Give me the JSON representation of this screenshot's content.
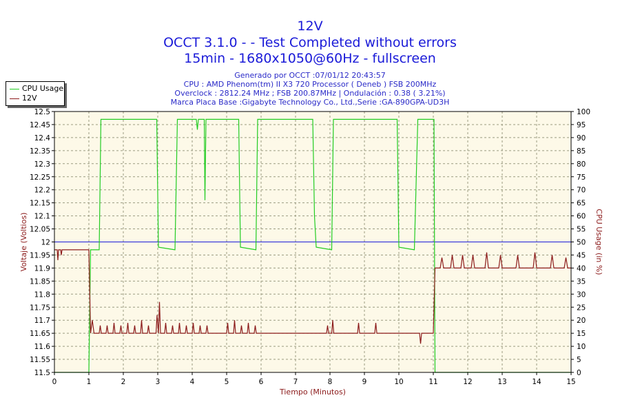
{
  "header": {
    "title": "12V",
    "subtitle1": "OCCT 3.1.0 -  - Test Completed without errors",
    "subtitle2": "15min - 1680x1050@60Hz - fullscreen",
    "info": [
      "Generado por OCCT :07/01/12 20:43:57",
      "CPU : AMD Phenom(tm) II X3 720 Processor ( Deneb ) FSB 200MHz",
      "Overclock : 2812.24 MHz ; FSB 200.87MHz | Ondulación : 0.38 ( 3.21%)",
      "Marca Placa Base :Gigabyte Technology Co., Ltd.,Serie :GA-890GPA-UD3H"
    ]
  },
  "legend": {
    "items": [
      {
        "label": "CPU Usage",
        "color": "#22cc22"
      },
      {
        "label": "12V",
        "color": "#8b1a1a"
      }
    ]
  },
  "colors": {
    "plot_bg": "#fdf9e8",
    "grid": "#9a9a80",
    "cpu": "#22cc22",
    "volt": "#8b1a1a",
    "ref": "#1a1ad8"
  },
  "chart_data": {
    "type": "line",
    "xlabel": "Tiempo (Minutos)",
    "ylabel_left": "Voltaje (Voltios)",
    "ylabel_right": "CPU Usage (in %)",
    "xlim": [
      0,
      15
    ],
    "ylim_left": [
      11.5,
      12.5
    ],
    "ylim_right": [
      0,
      100
    ],
    "x_ticks": [
      "0",
      "1",
      "2",
      "3",
      "4",
      "5",
      "6",
      "7",
      "8",
      "9",
      "10",
      "11",
      "12",
      "13",
      "14",
      "15"
    ],
    "y_left_ticks": [
      "11.5",
      "11.55",
      "11.6",
      "11.65",
      "11.7",
      "11.75",
      "11.8",
      "11.85",
      "11.9",
      "11.95",
      "12",
      "12.05",
      "12.1",
      "12.15",
      "12.2",
      "12.25",
      "12.3",
      "12.35",
      "12.4",
      "12.45",
      "12.5"
    ],
    "y_right_ticks": [
      "0",
      "5",
      "10",
      "15",
      "20",
      "25",
      "30",
      "35",
      "40",
      "45",
      "50",
      "55",
      "60",
      "65",
      "70",
      "75",
      "80",
      "85",
      "90",
      "95",
      "100"
    ],
    "grid": true,
    "reference_line": {
      "axis": "left",
      "value": 12.0
    },
    "series": [
      {
        "name": "CPU Usage",
        "axis": "right",
        "points": [
          [
            0,
            0
          ],
          [
            0.98,
            0
          ],
          [
            1.0,
            0
          ],
          [
            1.05,
            47
          ],
          [
            1.3,
            47
          ],
          [
            1.35,
            97
          ],
          [
            2.97,
            97
          ],
          [
            3.02,
            48
          ],
          [
            3.5,
            47
          ],
          [
            3.57,
            97
          ],
          [
            4.12,
            97
          ],
          [
            4.15,
            93
          ],
          [
            4.18,
            97
          ],
          [
            4.35,
            97
          ],
          [
            4.37,
            66
          ],
          [
            4.4,
            97
          ],
          [
            5.35,
            97
          ],
          [
            5.4,
            48
          ],
          [
            5.85,
            47
          ],
          [
            5.9,
            97
          ],
          [
            7.5,
            97
          ],
          [
            7.55,
            60
          ],
          [
            7.6,
            48
          ],
          [
            8.05,
            47
          ],
          [
            8.1,
            97
          ],
          [
            9.95,
            97
          ],
          [
            10.0,
            48
          ],
          [
            10.45,
            47
          ],
          [
            10.55,
            97
          ],
          [
            11.02,
            97
          ],
          [
            11.05,
            0
          ],
          [
            15,
            0
          ]
        ]
      },
      {
        "name": "12V",
        "axis": "left",
        "points": [
          [
            0,
            11.97
          ],
          [
            0.08,
            11.97
          ],
          [
            0.1,
            11.93
          ],
          [
            0.12,
            11.97
          ],
          [
            0.18,
            11.97
          ],
          [
            0.2,
            11.95
          ],
          [
            0.22,
            11.97
          ],
          [
            1.0,
            11.97
          ],
          [
            1.05,
            11.65
          ],
          [
            1.1,
            11.7
          ],
          [
            1.15,
            11.65
          ],
          [
            1.3,
            11.65
          ],
          [
            1.33,
            11.68
          ],
          [
            1.36,
            11.65
          ],
          [
            1.5,
            11.65
          ],
          [
            1.53,
            11.68
          ],
          [
            1.56,
            11.65
          ],
          [
            1.7,
            11.65
          ],
          [
            1.73,
            11.69
          ],
          [
            1.76,
            11.65
          ],
          [
            1.9,
            11.65
          ],
          [
            1.93,
            11.68
          ],
          [
            1.96,
            11.65
          ],
          [
            2.1,
            11.65
          ],
          [
            2.13,
            11.69
          ],
          [
            2.16,
            11.65
          ],
          [
            2.3,
            11.65
          ],
          [
            2.33,
            11.68
          ],
          [
            2.36,
            11.65
          ],
          [
            2.5,
            11.65
          ],
          [
            2.53,
            11.7
          ],
          [
            2.56,
            11.65
          ],
          [
            2.7,
            11.65
          ],
          [
            2.73,
            11.68
          ],
          [
            2.76,
            11.65
          ],
          [
            2.95,
            11.65
          ],
          [
            2.98,
            11.72
          ],
          [
            3.02,
            11.65
          ],
          [
            3.05,
            11.77
          ],
          [
            3.08,
            11.65
          ],
          [
            3.2,
            11.65
          ],
          [
            3.23,
            11.69
          ],
          [
            3.26,
            11.65
          ],
          [
            3.4,
            11.65
          ],
          [
            3.43,
            11.68
          ],
          [
            3.46,
            11.65
          ],
          [
            3.6,
            11.65
          ],
          [
            3.63,
            11.69
          ],
          [
            3.66,
            11.65
          ],
          [
            3.8,
            11.65
          ],
          [
            3.83,
            11.68
          ],
          [
            3.86,
            11.65
          ],
          [
            4.0,
            11.65
          ],
          [
            4.03,
            11.69
          ],
          [
            4.06,
            11.65
          ],
          [
            4.2,
            11.65
          ],
          [
            4.23,
            11.68
          ],
          [
            4.26,
            11.65
          ],
          [
            4.4,
            11.65
          ],
          [
            4.43,
            11.68
          ],
          [
            4.46,
            11.65
          ],
          [
            5.0,
            11.65
          ],
          [
            5.03,
            11.69
          ],
          [
            5.06,
            11.65
          ],
          [
            5.2,
            11.65
          ],
          [
            5.23,
            11.7
          ],
          [
            5.26,
            11.65
          ],
          [
            5.4,
            11.65
          ],
          [
            5.43,
            11.68
          ],
          [
            5.46,
            11.65
          ],
          [
            5.6,
            11.65
          ],
          [
            5.63,
            11.69
          ],
          [
            5.66,
            11.65
          ],
          [
            5.8,
            11.65
          ],
          [
            5.83,
            11.68
          ],
          [
            5.86,
            11.65
          ],
          [
            7.9,
            11.65
          ],
          [
            7.93,
            11.68
          ],
          [
            7.96,
            11.65
          ],
          [
            8.05,
            11.65
          ],
          [
            8.08,
            11.7
          ],
          [
            8.11,
            11.65
          ],
          [
            8.8,
            11.65
          ],
          [
            8.83,
            11.69
          ],
          [
            8.86,
            11.65
          ],
          [
            9.3,
            11.65
          ],
          [
            9.33,
            11.69
          ],
          [
            9.36,
            11.65
          ],
          [
            10.6,
            11.65
          ],
          [
            10.63,
            11.61
          ],
          [
            10.66,
            11.65
          ],
          [
            11.0,
            11.65
          ],
          [
            11.05,
            11.9
          ],
          [
            11.2,
            11.9
          ],
          [
            11.25,
            11.94
          ],
          [
            11.3,
            11.9
          ],
          [
            11.5,
            11.9
          ],
          [
            11.55,
            11.95
          ],
          [
            11.6,
            11.9
          ],
          [
            11.8,
            11.9
          ],
          [
            11.85,
            11.95
          ],
          [
            11.9,
            11.9
          ],
          [
            12.1,
            11.9
          ],
          [
            12.15,
            11.95
          ],
          [
            12.2,
            11.9
          ],
          [
            12.5,
            11.9
          ],
          [
            12.55,
            11.96
          ],
          [
            12.6,
            11.9
          ],
          [
            12.9,
            11.9
          ],
          [
            12.95,
            11.95
          ],
          [
            13.0,
            11.9
          ],
          [
            13.4,
            11.9
          ],
          [
            13.45,
            11.95
          ],
          [
            13.5,
            11.9
          ],
          [
            13.9,
            11.9
          ],
          [
            13.95,
            11.96
          ],
          [
            14.0,
            11.9
          ],
          [
            14.4,
            11.9
          ],
          [
            14.45,
            11.95
          ],
          [
            14.5,
            11.9
          ],
          [
            14.8,
            11.9
          ],
          [
            14.85,
            11.94
          ],
          [
            14.9,
            11.9
          ],
          [
            15,
            11.9
          ]
        ]
      }
    ]
  }
}
